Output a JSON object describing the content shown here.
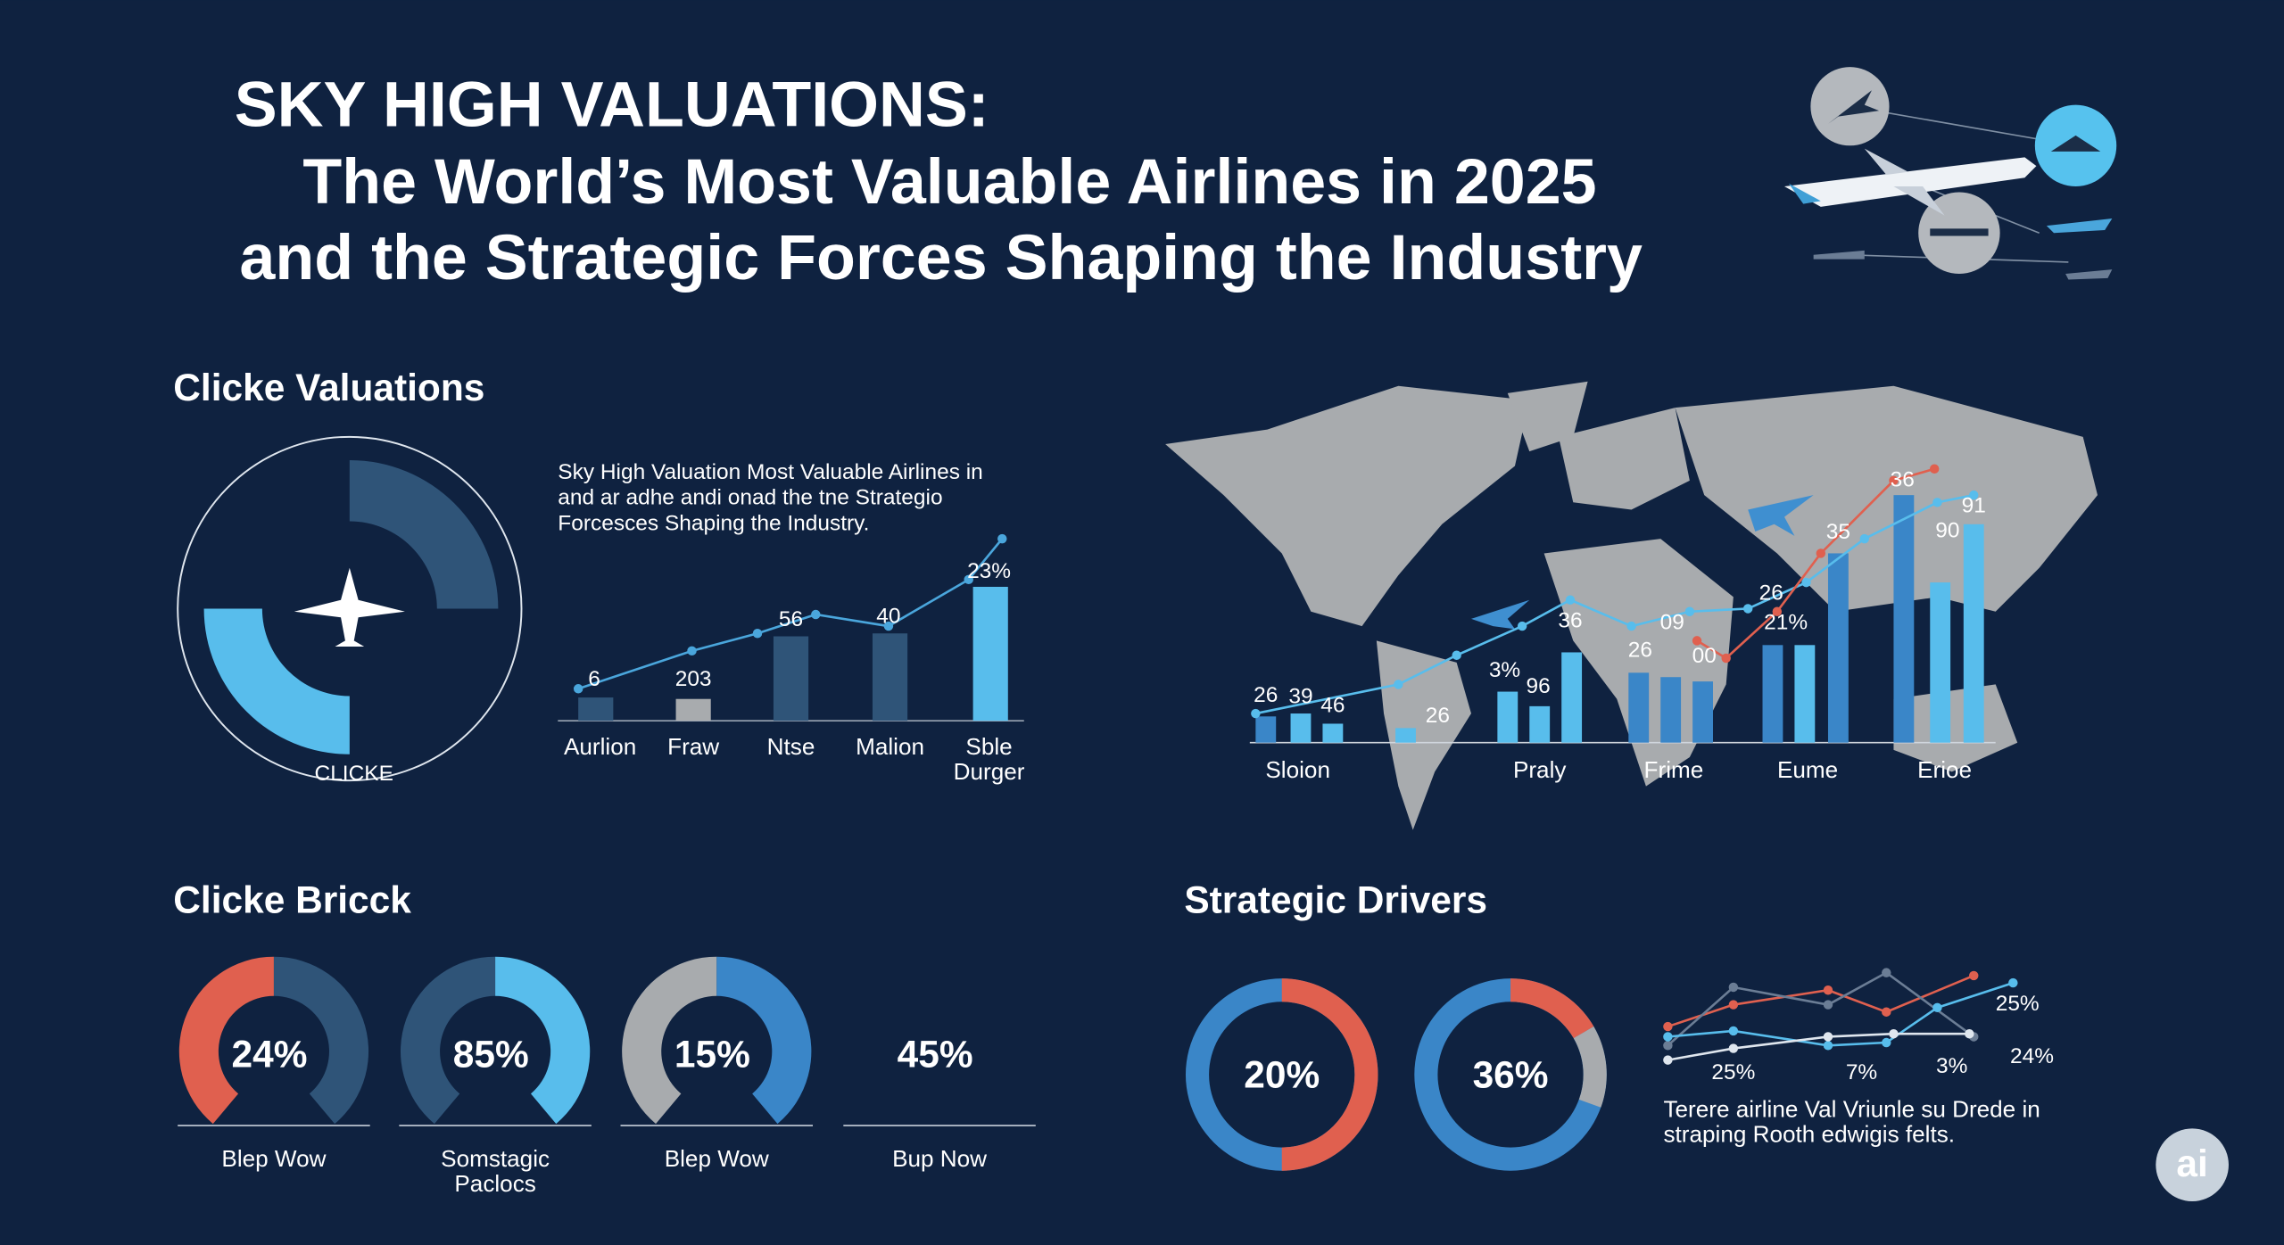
{
  "header": {
    "title_line1": "SKY HIGH VALUATIONS:",
    "title_line2": "The World’s Most Valuable Airlines in 2025",
    "title_line3": "and the Strategic Forces Shaping the Industry"
  },
  "valuations": {
    "heading": "Clicke Valuations",
    "ring_label": "CLICKE",
    "chart_caption": [
      "Sky High Valuation Most Valuable Airlines in",
      "and ar adhe andi onad the tne  Strategio",
      "Forcesces Shaping the Industry."
    ],
    "bar_labels": [
      "6",
      "203",
      "56",
      "40",
      "23%"
    ],
    "categories": [
      "Aurlion",
      "Fraw",
      "Ntse",
      "Malion",
      [
        "Sble",
        "Durger"
      ]
    ]
  },
  "map": {
    "labels": [
      "26",
      "39",
      "46",
      "26",
      "3%",
      "96",
      "36",
      "26",
      "09",
      "00",
      "26",
      "21%",
      "35",
      "36",
      "90",
      "91"
    ],
    "categories": [
      "Sloion",
      "Praly",
      "Frime",
      "Eume",
      "Erioe"
    ]
  },
  "breakdown": {
    "heading": "Clicke Bricck",
    "gauges": [
      {
        "value": "24%",
        "label": "Blep Wow"
      },
      {
        "value": "85%",
        "label": [
          "Somstagic",
          "Paclocs"
        ]
      },
      {
        "value": "15%",
        "label": "Blep Wow"
      },
      {
        "value": "45%",
        "label": "Bup Now"
      }
    ]
  },
  "drivers": {
    "heading": "Strategic Drivers",
    "donuts": [
      "20%",
      "36%"
    ],
    "line_labels": [
      "25%",
      "25%",
      "7%",
      "3%",
      "24%"
    ],
    "caption": [
      "Terere airline Val Vriunle su Drede in",
      "straping Rooth edwigis felts."
    ]
  },
  "badge": "ai"
}
